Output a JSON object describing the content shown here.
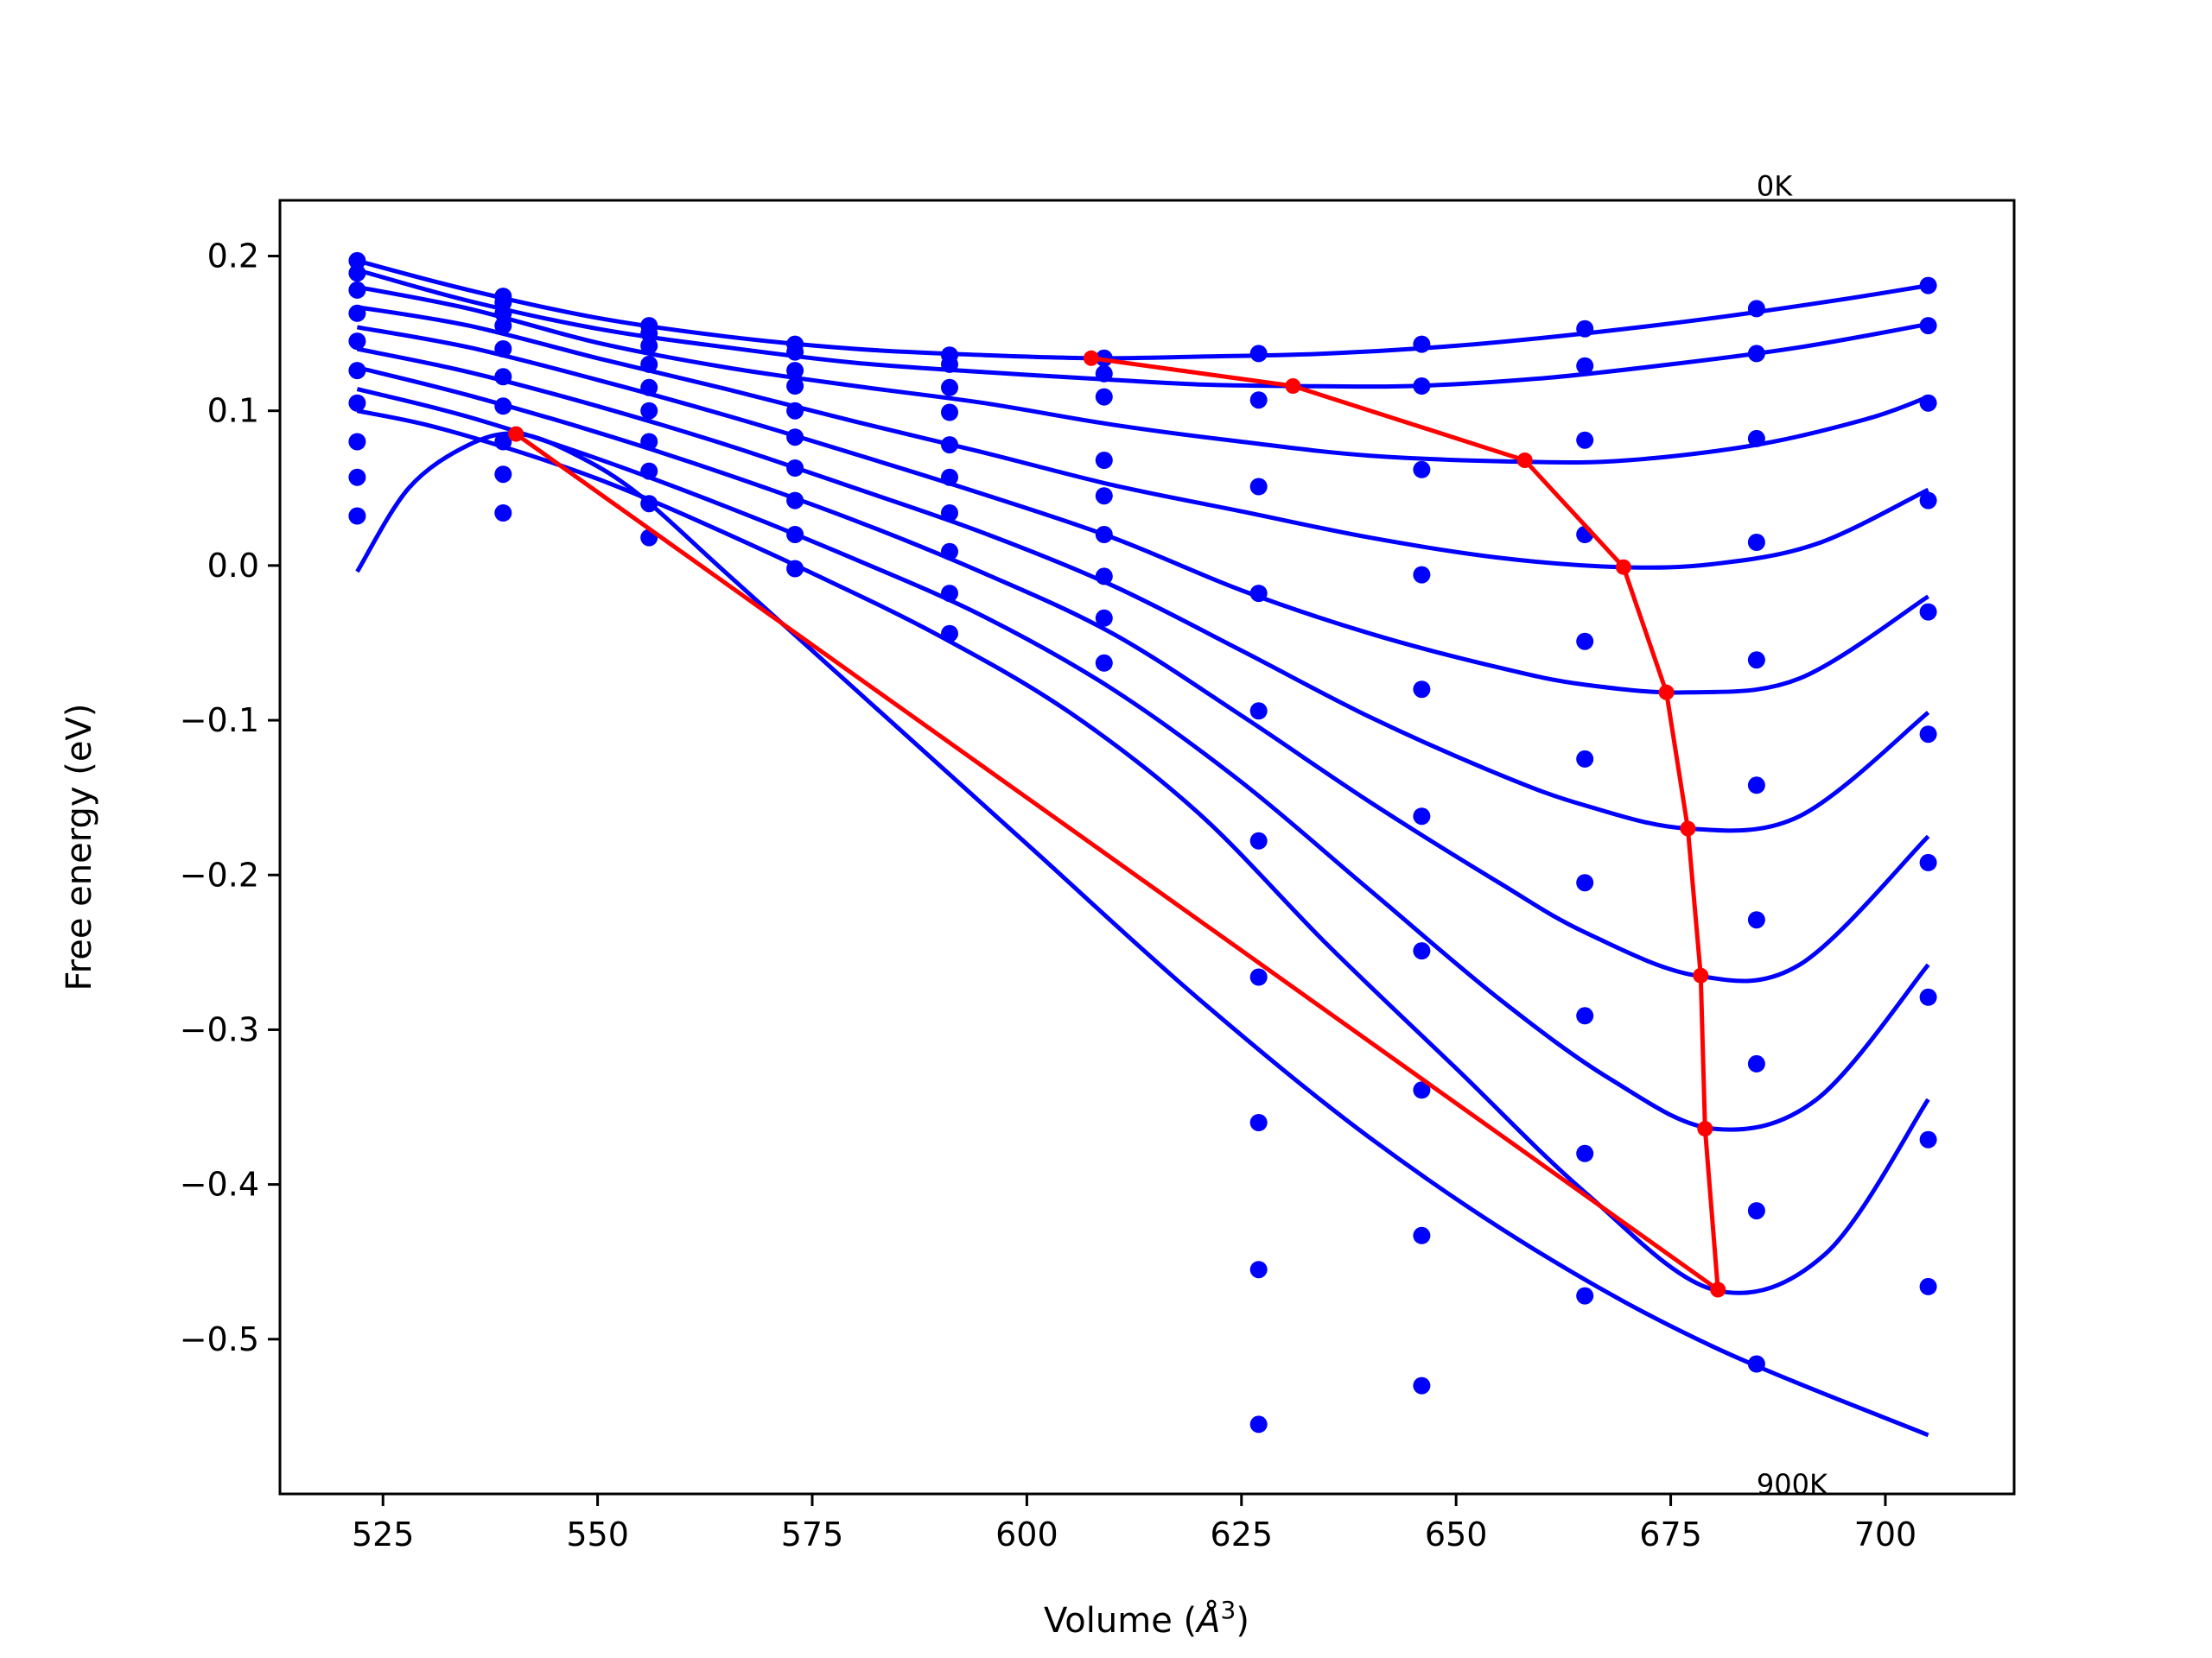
{
  "chart_data": {
    "type": "line",
    "title": "",
    "xlabel_prefix": "Volume (",
    "xlabel_symbol": "Å",
    "xlabel_sup": "3",
    "xlabel_suffix": ")",
    "ylabel": "Free energy (eV)",
    "xlim": [
      513,
      715
    ],
    "ylim": [
      -0.6,
      0.236
    ],
    "xticks": [
      525,
      550,
      575,
      600,
      625,
      650,
      675,
      700
    ],
    "xtick_labels": [
      "525",
      "550",
      "575",
      "600",
      "625",
      "650",
      "675",
      "700"
    ],
    "yticks": [
      0.2,
      0.1,
      0.0,
      -0.1,
      -0.2,
      -0.3,
      -0.4,
      -0.5
    ],
    "ytick_labels": [
      "0.2",
      "0.1",
      "0.0",
      "−0.1",
      "−0.2",
      "−0.3",
      "−0.4",
      "−0.5"
    ],
    "annotations": [
      {
        "text": "0K",
        "x": 685,
        "y": 0.239
      },
      {
        "text": "900K",
        "x": 685,
        "y": -0.6
      }
    ],
    "curve_color": "#0000ff",
    "path_color": "#ff0000",
    "point_x": [
      522,
      539,
      556,
      573,
      591,
      609,
      627,
      646,
      665,
      685,
      705
    ],
    "series": [
      {
        "points_y": [
          0.197,
          0.174,
          0.155,
          0.143,
          0.136,
          0.134,
          0.137,
          0.143,
          0.153,
          0.166,
          0.181
        ],
        "fit_x": [
          522,
          535,
          550,
          565,
          580,
          595,
          608,
          620,
          635,
          650,
          665,
          680,
          695,
          705
        ],
        "fit_y": [
          0.197,
          0.178,
          0.16,
          0.148,
          0.14,
          0.136,
          0.134,
          0.135,
          0.137,
          0.142,
          0.15,
          0.16,
          0.172,
          0.181
        ]
      },
      {
        "points_y": [
          0.189,
          0.17,
          0.15,
          0.138,
          0.13,
          0.124,
          0.107,
          0.116,
          0.129,
          0.137,
          0.155
        ],
        "fit_x": [
          522,
          535,
          550,
          565,
          580,
          595,
          610,
          620,
          631,
          645,
          660,
          675,
          690,
          705
        ],
        "fit_y": [
          0.191,
          0.171,
          0.153,
          0.141,
          0.131,
          0.125,
          0.12,
          0.117,
          0.116,
          0.116,
          0.121,
          0.13,
          0.141,
          0.156
        ]
      },
      {
        "points_y": [
          0.178,
          0.163,
          0.142,
          0.126,
          0.115,
          0.109,
          0.051,
          0.062,
          0.081,
          0.082,
          0.105
        ],
        "fit_x": [
          522,
          535,
          550,
          565,
          580,
          595,
          610,
          625,
          640,
          658,
          670,
          685,
          698,
          705
        ],
        "fit_y": [
          0.18,
          0.166,
          0.144,
          0.128,
          0.116,
          0.105,
          0.091,
          0.08,
          0.071,
          0.067,
          0.068,
          0.078,
          0.095,
          0.109
        ]
      },
      {
        "points_y": [
          0.163,
          0.155,
          0.13,
          0.116,
          0.099,
          0.068,
          -0.018,
          -0.006,
          0.02,
          0.015,
          0.042
        ],
        "fit_x": [
          522,
          535,
          550,
          565,
          580,
          595,
          610,
          625,
          640,
          655,
          669,
          680,
          692,
          705
        ],
        "fit_y": [
          0.167,
          0.155,
          0.134,
          0.114,
          0.093,
          0.073,
          0.052,
          0.035,
          0.018,
          0.005,
          -0.001,
          0.001,
          0.014,
          0.049
        ]
      },
      {
        "points_y": [
          0.145,
          0.14,
          0.115,
          0.1,
          0.078,
          0.045,
          -0.094,
          -0.08,
          -0.049,
          -0.061,
          -0.03
        ],
        "fit_x": [
          522,
          535,
          550,
          565,
          580,
          595,
          610,
          625,
          640,
          655,
          665,
          677,
          690,
          705
        ],
        "fit_y": [
          0.154,
          0.141,
          0.12,
          0.097,
          0.072,
          0.046,
          0.018,
          -0.016,
          -0.044,
          -0.066,
          -0.077,
          -0.082,
          -0.073,
          -0.02
        ]
      },
      {
        "points_y": [
          0.126,
          0.122,
          0.1,
          0.083,
          0.057,
          0.02,
          -0.178,
          -0.162,
          -0.125,
          -0.142,
          -0.109
        ],
        "fit_x": [
          522,
          535,
          550,
          565,
          580,
          595,
          610,
          625,
          640,
          655,
          665,
          677,
          690,
          705
        ],
        "fit_y": [
          0.14,
          0.125,
          0.103,
          0.078,
          0.05,
          0.021,
          -0.013,
          -0.055,
          -0.098,
          -0.135,
          -0.155,
          -0.17,
          -0.162,
          -0.095
        ]
      },
      {
        "points_y": [
          0.105,
          0.103,
          0.08,
          0.063,
          0.034,
          -0.007,
          -0.266,
          -0.249,
          -0.205,
          -0.229,
          -0.192
        ],
        "fit_x": [
          522,
          535,
          550,
          565,
          580,
          595,
          610,
          625,
          640,
          655,
          665,
          678,
          690,
          705
        ],
        "fit_y": [
          0.128,
          0.11,
          0.086,
          0.059,
          0.029,
          -0.005,
          -0.044,
          -0.097,
          -0.153,
          -0.205,
          -0.237,
          -0.265,
          -0.258,
          -0.175
        ]
      },
      {
        "points_y": [
          0.08,
          0.08,
          0.061,
          0.042,
          0.009,
          -0.034,
          -0.36,
          -0.339,
          -0.291,
          -0.322,
          -0.279
        ],
        "fit_x": [
          522,
          535,
          550,
          565,
          580,
          595,
          610,
          625,
          640,
          655,
          668,
          680,
          692,
          705
        ],
        "fit_y": [
          0.114,
          0.096,
          0.069,
          0.038,
          0.004,
          -0.033,
          -0.08,
          -0.14,
          -0.21,
          -0.28,
          -0.332,
          -0.364,
          -0.345,
          -0.258
        ]
      },
      {
        "points_y": [
          0.057,
          0.059,
          0.04,
          0.02,
          -0.018,
          -0.063,
          -0.455,
          -0.433,
          -0.38,
          -0.417,
          -0.371
        ],
        "fit_x": [
          522,
          530,
          540,
          550,
          560,
          575,
          590,
          605,
          620,
          635,
          650,
          665,
          680,
          693,
          705
        ],
        "fit_y": [
          0.1,
          0.091,
          0.075,
          0.056,
          0.033,
          -0.005,
          -0.046,
          -0.095,
          -0.16,
          -0.245,
          -0.325,
          -0.405,
          -0.468,
          -0.445,
          -0.345
        ]
      },
      {
        "points_y": [
          0.032,
          0.034,
          0.018,
          -0.002,
          -0.044,
          null,
          -0.555,
          -0.53,
          -0.472,
          -0.516,
          -0.466
        ],
        "fit_x": [
          522,
          528,
          535,
          541,
          548,
          555,
          565,
          580,
          600,
          620,
          640,
          660,
          680,
          705
        ],
        "fit_y": [
          -0.004,
          0.05,
          0.078,
          0.085,
          0.07,
          0.045,
          -0.005,
          -0.08,
          -0.18,
          -0.28,
          -0.37,
          -0.445,
          -0.505,
          -0.562
        ]
      }
    ],
    "minimum_path": {
      "x": [
        607.5,
        631,
        658,
        669.5,
        674.5,
        677,
        678.5,
        679,
        680.5
      ],
      "y": [
        0.134,
        0.116,
        0.068,
        -0.001,
        -0.082,
        -0.17,
        -0.265,
        -0.364,
        -0.468
      ]
    },
    "common_tangent": {
      "x": [
        540.5,
        680.5
      ],
      "y": [
        0.085,
        -0.468
      ]
    }
  }
}
